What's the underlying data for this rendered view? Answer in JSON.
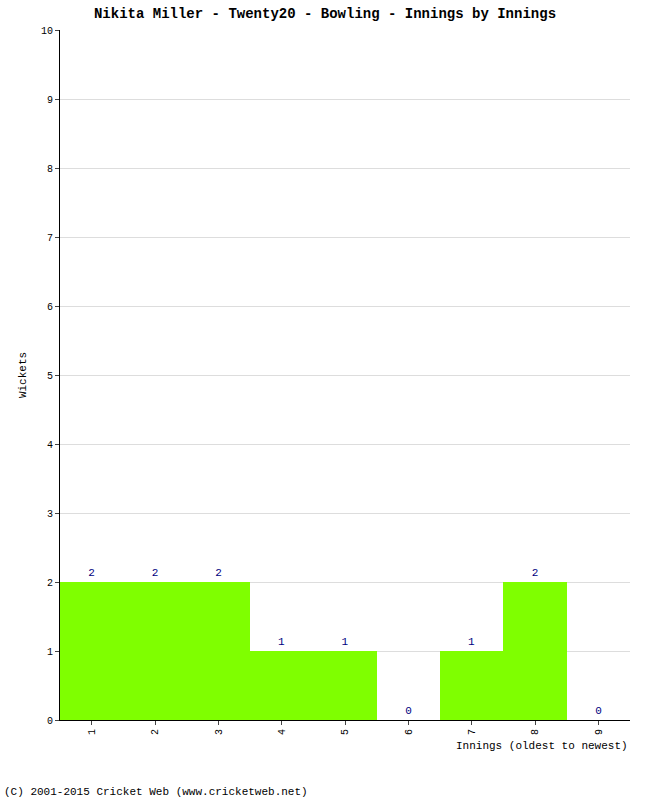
{
  "chart_data": {
    "type": "bar",
    "title": "Nikita Miller - Twenty20 - Bowling - Innings by Innings",
    "x_label": "Innings (oldest to newest)",
    "y_label": "Wickets",
    "categories": [
      "1",
      "2",
      "3",
      "4",
      "5",
      "6",
      "7",
      "8",
      "9"
    ],
    "values": [
      2,
      2,
      2,
      1,
      1,
      0,
      1,
      2,
      0
    ],
    "color": "#7fff00",
    "ylim": [
      0,
      10
    ],
    "yticks": [
      0,
      1,
      2,
      3,
      4,
      5,
      6,
      7,
      8,
      9,
      10
    ],
    "grid": true,
    "data_labels": true,
    "annotations": [
      "(C) 2001-2015 Cricket Web (www.cricketweb.net)"
    ]
  }
}
